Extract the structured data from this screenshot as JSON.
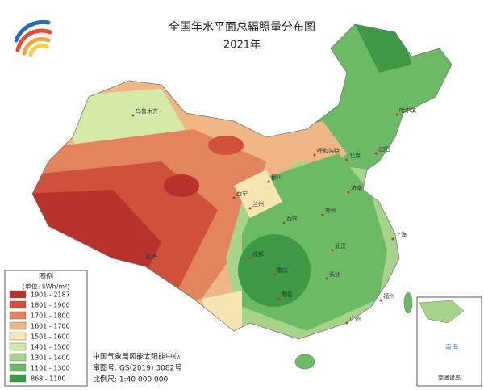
{
  "header": {
    "title": "全国年水平面总辐照量分布图",
    "subtitle": "2021年"
  },
  "legend": {
    "title": "图例",
    "unit": "(单位: kWh/m²)",
    "items": [
      {
        "label": "1901 - 2187",
        "color": "#b8312a"
      },
      {
        "label": "1801 - 1900",
        "color": "#cf503b"
      },
      {
        "label": "1701 - 1800",
        "color": "#e2855e"
      },
      {
        "label": "1601 - 1700",
        "color": "#efb785"
      },
      {
        "label": "1501 - 1600",
        "color": "#f7e6b3"
      },
      {
        "label": "1401 - 1500",
        "color": "#d5e9a6"
      },
      {
        "label": "1301 - 1400",
        "color": "#a7d38a"
      },
      {
        "label": "1101 - 1300",
        "color": "#6dba66"
      },
      {
        "label": "868 - 1100",
        "color": "#3e9947"
      }
    ]
  },
  "credits": [
    "中国气象局风能太阳能中心",
    "审图号: GS(2019) 3082号",
    "比例尺: 1:40 000 000"
  ],
  "cities": [
    "乌鲁木齐",
    "拉萨",
    "西宁",
    "兰州",
    "银川",
    "呼和浩特",
    "北京",
    "济南",
    "郑州",
    "西安",
    "成都",
    "重庆",
    "贵阳",
    "武汉",
    "长沙",
    "上海",
    "广州",
    "福州",
    "哈尔滨",
    "沈阳"
  ],
  "inset": {
    "title": "南海诸岛",
    "sea": "南海"
  }
}
